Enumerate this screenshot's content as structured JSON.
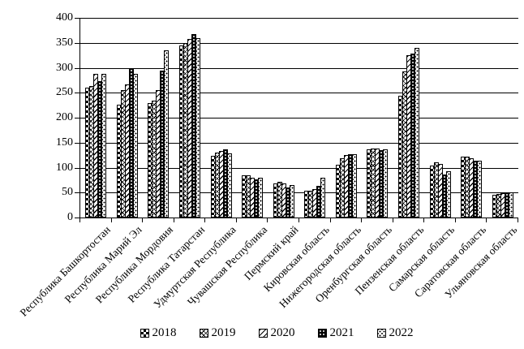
{
  "figure": {
    "background": "#ffffff",
    "foreground": "#000000"
  },
  "chart_data": {
    "type": "bar",
    "title": "",
    "xlabel": "",
    "ylabel": "",
    "ylim": [
      0,
      400
    ],
    "ytick_step": 50,
    "ytick_labels": [
      "0",
      "50",
      "100",
      "150",
      "200",
      "250",
      "300",
      "350",
      "400"
    ],
    "grid": true,
    "legend_position": "bottom",
    "categories": [
      "Республика Башкортостан",
      "Республика Марий Эл",
      "Республика Мордовия",
      "Республика Татарстан",
      "Удмуртская Республика",
      "Чувашская Республика",
      "Пермский край",
      "Кировская область",
      "Нижегородская область",
      "Оренбургская область",
      "Пензенская область",
      "Самарская область",
      "Саратовская область",
      "Ульяновская область"
    ],
    "series": [
      {
        "name": "2018",
        "pattern": "checker",
        "values": [
          261,
          226,
          230,
          344,
          124,
          84,
          69,
          54,
          105,
          137,
          244,
          104,
          122,
          45
        ]
      },
      {
        "name": "2019",
        "pattern": "crosshatch",
        "values": [
          263,
          256,
          234,
          350,
          130,
          85,
          72,
          54,
          119,
          138,
          292,
          110,
          122,
          47
        ]
      },
      {
        "name": "2020",
        "pattern": "diagonal",
        "values": [
          288,
          266,
          256,
          357,
          134,
          80,
          68,
          57,
          125,
          139,
          326,
          107,
          118,
          48
        ]
      },
      {
        "name": "2021",
        "pattern": "dark-dots",
        "values": [
          273,
          300,
          295,
          367,
          136,
          76,
          61,
          64,
          127,
          135,
          329,
          87,
          114,
          50
        ]
      },
      {
        "name": "2022",
        "pattern": "light-dots",
        "values": [
          288,
          288,
          335,
          360,
          129,
          80,
          65,
          79,
          127,
          137,
          340,
          92,
          114,
          50
        ]
      }
    ]
  }
}
